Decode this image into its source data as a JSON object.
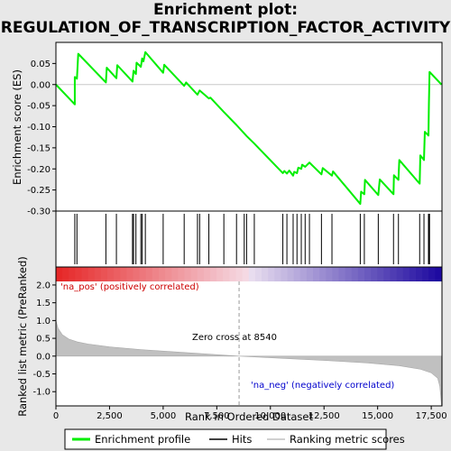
{
  "title_line1": "Enrichment plot:",
  "title_line2": "REGULATION_OF_TRANSCRIPTION_FACTOR_ACTIVITY",
  "legend": {
    "enrichment": "Enrichment profile",
    "hits": "Hits",
    "ranking": "Ranking metric scores"
  },
  "annotations": {
    "na_pos": "'na_pos' (positively correlated)",
    "na_neg": "'na_neg' (negatively correlated)",
    "zero_cross": "Zero cross at 8540"
  },
  "colors": {
    "enrichment_line": "#00ee00",
    "na_pos_text": "#cc0000",
    "na_neg_text": "#0000cc",
    "ranking_fill": "#c0c0c0"
  },
  "chart_data": [
    {
      "type": "line",
      "name": "enrichment-profile",
      "ylabel": "Enrichment score (ES)",
      "xlim": [
        0,
        18000
      ],
      "ylim": [
        -0.3,
        0.1
      ],
      "yticks": [
        0.05,
        0.0,
        -0.05,
        -0.1,
        -0.15,
        -0.2,
        -0.25,
        -0.3
      ],
      "ytick_labels": [
        "0.05",
        "0.00",
        "-0.05",
        "-0.10",
        "-0.15",
        "-0.20",
        "-0.25",
        "-0.30"
      ],
      "points": [
        [
          0,
          0.0
        ],
        [
          880,
          -0.047
        ],
        [
          880,
          0.018
        ],
        [
          980,
          0.014
        ],
        [
          1040,
          0.073
        ],
        [
          2330,
          0.005
        ],
        [
          2370,
          0.04
        ],
        [
          2820,
          0.015
        ],
        [
          2860,
          0.046
        ],
        [
          3570,
          0.007
        ],
        [
          3620,
          0.033
        ],
        [
          3730,
          0.025
        ],
        [
          3760,
          0.052
        ],
        [
          3960,
          0.042
        ],
        [
          4020,
          0.062
        ],
        [
          4080,
          0.055
        ],
        [
          4170,
          0.077
        ],
        [
          5000,
          0.028
        ],
        [
          5050,
          0.047
        ],
        [
          5980,
          -0.003
        ],
        [
          6070,
          0.005
        ],
        [
          6600,
          -0.024
        ],
        [
          6700,
          -0.014
        ],
        [
          7130,
          -0.033
        ],
        [
          7200,
          -0.031
        ],
        [
          7830,
          -0.065
        ],
        [
          8420,
          -0.096
        ],
        [
          8780,
          -0.116
        ],
        [
          8890,
          -0.122
        ],
        [
          9250,
          -0.14
        ],
        [
          10580,
          -0.21
        ],
        [
          10650,
          -0.205
        ],
        [
          10770,
          -0.211
        ],
        [
          10880,
          -0.204
        ],
        [
          11060,
          -0.216
        ],
        [
          11110,
          -0.207
        ],
        [
          11240,
          -0.21
        ],
        [
          11300,
          -0.197
        ],
        [
          11440,
          -0.2
        ],
        [
          11480,
          -0.19
        ],
        [
          11620,
          -0.195
        ],
        [
          11820,
          -0.185
        ],
        [
          12380,
          -0.213
        ],
        [
          12440,
          -0.198
        ],
        [
          12870,
          -0.216
        ],
        [
          12920,
          -0.206
        ],
        [
          14190,
          -0.283
        ],
        [
          14230,
          -0.254
        ],
        [
          14380,
          -0.26
        ],
        [
          14410,
          -0.226
        ],
        [
          15030,
          -0.262
        ],
        [
          15100,
          -0.225
        ],
        [
          15740,
          -0.26
        ],
        [
          15760,
          -0.215
        ],
        [
          15970,
          -0.226
        ],
        [
          16010,
          -0.179
        ],
        [
          16960,
          -0.235
        ],
        [
          16990,
          -0.168
        ],
        [
          17160,
          -0.179
        ],
        [
          17200,
          -0.112
        ],
        [
          17370,
          -0.121
        ],
        [
          17390,
          -0.046
        ],
        [
          17420,
          0.03
        ],
        [
          17980,
          0.0
        ]
      ]
    },
    {
      "type": "scatter",
      "name": "hits",
      "x": [
        880,
        980,
        2330,
        2820,
        3570,
        3620,
        3730,
        3960,
        4020,
        4170,
        5000,
        5980,
        6600,
        6700,
        7130,
        7830,
        8420,
        8780,
        8890,
        9250,
        10580,
        10770,
        11060,
        11240,
        11440,
        11620,
        11820,
        12380,
        12870,
        14190,
        14380,
        15030,
        15740,
        15970,
        16960,
        17160,
        17370,
        17390,
        17420
      ]
    },
    {
      "type": "area",
      "name": "ranking-metric-scores",
      "xlabel": "Rank in Ordered Dataset",
      "ylabel": "Ranked list metric (PreRanked)",
      "xlim": [
        0,
        18000
      ],
      "ylim": [
        -1.4,
        2.1
      ],
      "yticks": [
        2.0,
        1.5,
        1.0,
        0.5,
        0.0,
        -0.5,
        -1.0
      ],
      "ytick_labels": [
        "2.0",
        "1.5",
        "1.0",
        "0.5",
        "0.0",
        "-0.5",
        "-1.0"
      ],
      "xticks": [
        0,
        2500,
        5000,
        7500,
        10000,
        12500,
        15000,
        17500
      ],
      "xtick_labels": [
        "0",
        "2,500",
        "5,000",
        "7,500",
        "10,000",
        "12,500",
        "15,000",
        "17,500"
      ],
      "zero_cross": 8540,
      "points": [
        [
          0,
          1.0
        ],
        [
          100,
          0.78
        ],
        [
          300,
          0.6
        ],
        [
          600,
          0.48
        ],
        [
          1000,
          0.4
        ],
        [
          1500,
          0.34
        ],
        [
          2500,
          0.26
        ],
        [
          4000,
          0.18
        ],
        [
          6000,
          0.1
        ],
        [
          8540,
          0.0
        ],
        [
          10500,
          -0.06
        ],
        [
          12500,
          -0.12
        ],
        [
          14500,
          -0.19
        ],
        [
          16000,
          -0.27
        ],
        [
          17000,
          -0.37
        ],
        [
          17500,
          -0.47
        ],
        [
          17800,
          -0.62
        ],
        [
          17900,
          -0.85
        ],
        [
          17980,
          -1.4
        ]
      ]
    }
  ]
}
